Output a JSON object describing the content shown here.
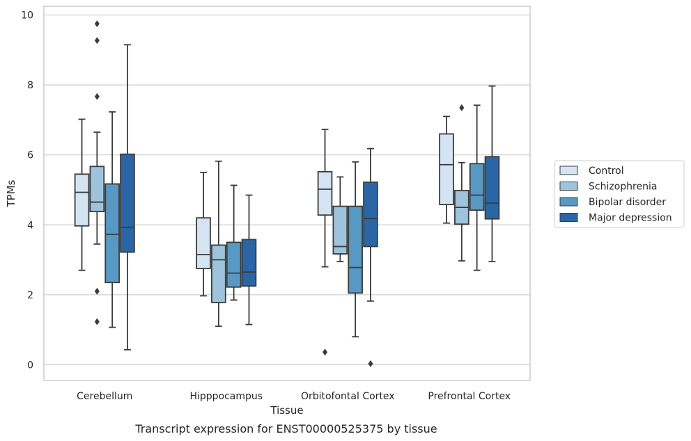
{
  "chart_data": {
    "type": "box",
    "title": "",
    "caption": "Transcript expression for ENST00000525375 by tissue",
    "xlabel": "Tissue",
    "ylabel": "TPMs",
    "ylim": [
      -0.45,
      10.25
    ],
    "yticks": [
      0,
      2,
      4,
      6,
      8,
      10
    ],
    "grid": "horizontal",
    "legend_position": "right",
    "categories": [
      "Cerebellum",
      "Hipppocampus",
      "Orbitofontal Cortex",
      "Prefrontal Cortex"
    ],
    "series": [
      {
        "name": "Control",
        "color": "#d4e4f3",
        "boxes": [
          {
            "whislo": 2.7,
            "q1": 3.97,
            "med": 4.93,
            "q3": 5.45,
            "whishi": 7.02,
            "fliers": []
          },
          {
            "whislo": 1.97,
            "q1": 2.75,
            "med": 3.15,
            "q3": 4.2,
            "whishi": 5.5,
            "fliers": []
          },
          {
            "whislo": 2.8,
            "q1": 4.28,
            "med": 5.02,
            "q3": 5.52,
            "whishi": 6.73,
            "fliers": [
              0.36
            ]
          },
          {
            "whislo": 4.05,
            "q1": 4.58,
            "med": 5.72,
            "q3": 6.6,
            "whishi": 7.1,
            "fliers": []
          }
        ]
      },
      {
        "name": "Schizophrenia",
        "color": "#9ec4dd",
        "boxes": [
          {
            "whislo": 3.45,
            "q1": 4.38,
            "med": 4.65,
            "q3": 5.67,
            "whishi": 6.65,
            "fliers": [
              9.75,
              9.27,
              7.67,
              2.1,
              1.23
            ]
          },
          {
            "whislo": 1.1,
            "q1": 1.78,
            "med": 3.0,
            "q3": 3.42,
            "whishi": 5.82,
            "fliers": []
          },
          {
            "whislo": 2.95,
            "q1": 3.17,
            "med": 3.38,
            "q3": 4.53,
            "whishi": 5.37,
            "fliers": []
          },
          {
            "whislo": 2.97,
            "q1": 4.02,
            "med": 4.5,
            "q3": 4.98,
            "whishi": 5.78,
            "fliers": [
              7.35
            ]
          }
        ]
      },
      {
        "name": "Bipolar disorder",
        "color": "#5899c4",
        "boxes": [
          {
            "whislo": 1.07,
            "q1": 2.35,
            "med": 3.73,
            "q3": 5.17,
            "whishi": 7.23,
            "fliers": []
          },
          {
            "whislo": 1.85,
            "q1": 2.22,
            "med": 2.62,
            "q3": 3.5,
            "whishi": 5.13,
            "fliers": []
          },
          {
            "whislo": 0.8,
            "q1": 2.05,
            "med": 2.78,
            "q3": 4.53,
            "whishi": 5.8,
            "fliers": []
          },
          {
            "whislo": 2.7,
            "q1": 4.42,
            "med": 4.85,
            "q3": 5.75,
            "whishi": 7.42,
            "fliers": []
          }
        ]
      },
      {
        "name": "Major depression",
        "color": "#2a66a6",
        "boxes": [
          {
            "whislo": 0.43,
            "q1": 3.22,
            "med": 3.93,
            "q3": 6.02,
            "whishi": 9.15,
            "fliers": []
          },
          {
            "whislo": 1.15,
            "q1": 2.25,
            "med": 2.65,
            "q3": 3.58,
            "whishi": 4.85,
            "fliers": []
          },
          {
            "whislo": 1.82,
            "q1": 3.38,
            "med": 4.18,
            "q3": 5.22,
            "whishi": 6.18,
            "fliers": [
              0.03
            ]
          },
          {
            "whislo": 2.95,
            "q1": 4.17,
            "med": 4.62,
            "q3": 5.95,
            "whishi": 7.97,
            "fliers": []
          }
        ]
      }
    ]
  }
}
